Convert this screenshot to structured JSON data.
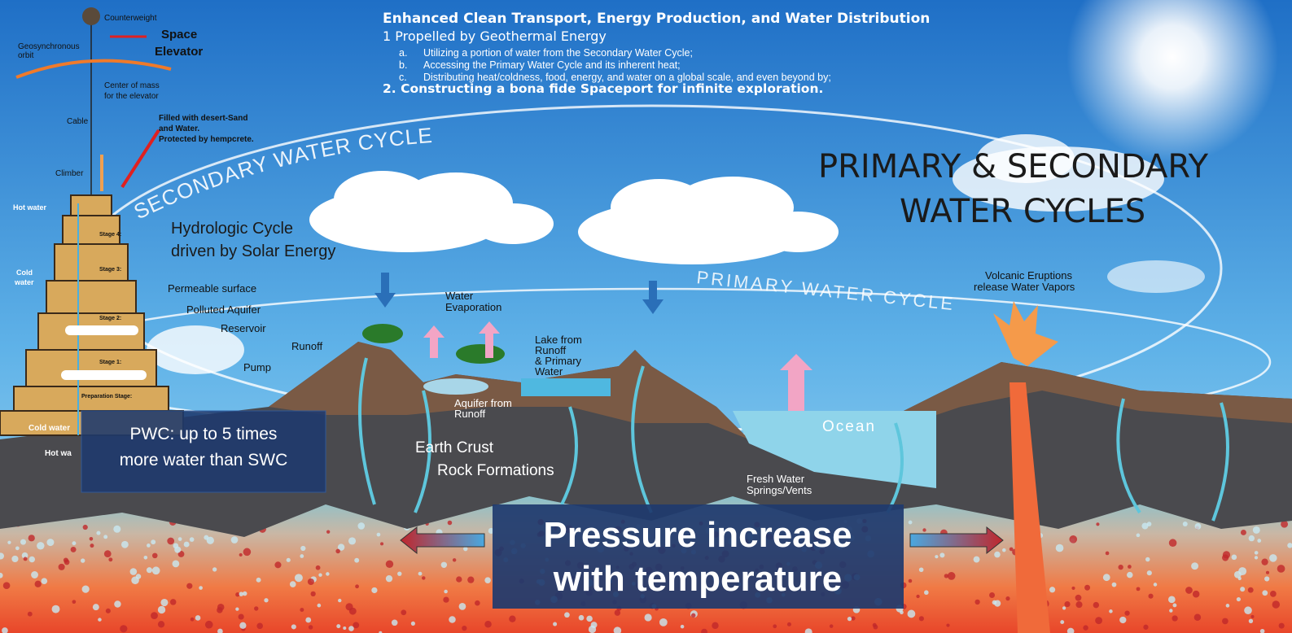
{
  "header": {
    "title": "Enhanced Clean Transport, Energy Production, and Water Distribution",
    "point1": "1 Propelled by Geothermal Energy",
    "items": [
      {
        "marker": "a.",
        "text": "Utilizing a portion of water from the Secondary Water Cycle;"
      },
      {
        "marker": "b.",
        "text": "Accessing the Primary Water Cycle and its inherent heat;"
      },
      {
        "marker": "c.",
        "text": "Distributing heat/coldness, food, energy, and water on a global scale, and even beyond by;"
      }
    ],
    "point2": "2. Constructing a bona fide Spaceport for infinite exploration."
  },
  "main_title": [
    "PRIMARY  & SECONDARY",
    "WATER CYCLES"
  ],
  "cycles": {
    "secondary": "SECONDARY WATER CYCLE",
    "primary": "PRIMARY WATER CYCLE"
  },
  "hydrologic": [
    "Hydrologic Cycle",
    "driven by Solar Energy"
  ],
  "elevator": {
    "counterweight": "Counterweight",
    "title": [
      "Space",
      "Elevator"
    ],
    "orbit": [
      "Geosynchronous",
      "orbit"
    ],
    "center": [
      "Center of mass",
      "for the elevator"
    ],
    "cable": "Cable",
    "climber": "Climber",
    "filled": [
      "Filled with desert-Sand",
      "and Water.",
      "Protected by hempcrete."
    ],
    "hot_water": "Hot water",
    "cold_water": [
      "Cold",
      "water"
    ],
    "stages": [
      "Stage 4:",
      "Stage 3:",
      "Stage 2:",
      "Stage 1:",
      "Preparation Stage:"
    ],
    "base_cold": "Cold water",
    "base_hot": "Hot wa"
  },
  "labels": {
    "permeable": "Permeable surface",
    "polluted": "Polluted Aquifer",
    "reservoir": "Reservoir",
    "runoff": "Runoff",
    "pump": "Pump",
    "evaporation": [
      "Water",
      "Evaporation"
    ],
    "lake": [
      "Lake from",
      "Runoff",
      "& Primary",
      "Water"
    ],
    "aquifer": [
      "Aquifer from",
      "Runoff"
    ],
    "crust": [
      "Earth Crust",
      "Rock Formations"
    ],
    "ocean": "Ocean",
    "springs": [
      "Fresh Water",
      "Springs/Vents"
    ],
    "volcanic": [
      "Volcanic Eruptions",
      "release Water Vapors"
    ]
  },
  "callouts": {
    "pwc": [
      "PWC: up to 5 times",
      "more water than SWC"
    ],
    "pressure": [
      "Pressure increase",
      "with temperature"
    ]
  }
}
